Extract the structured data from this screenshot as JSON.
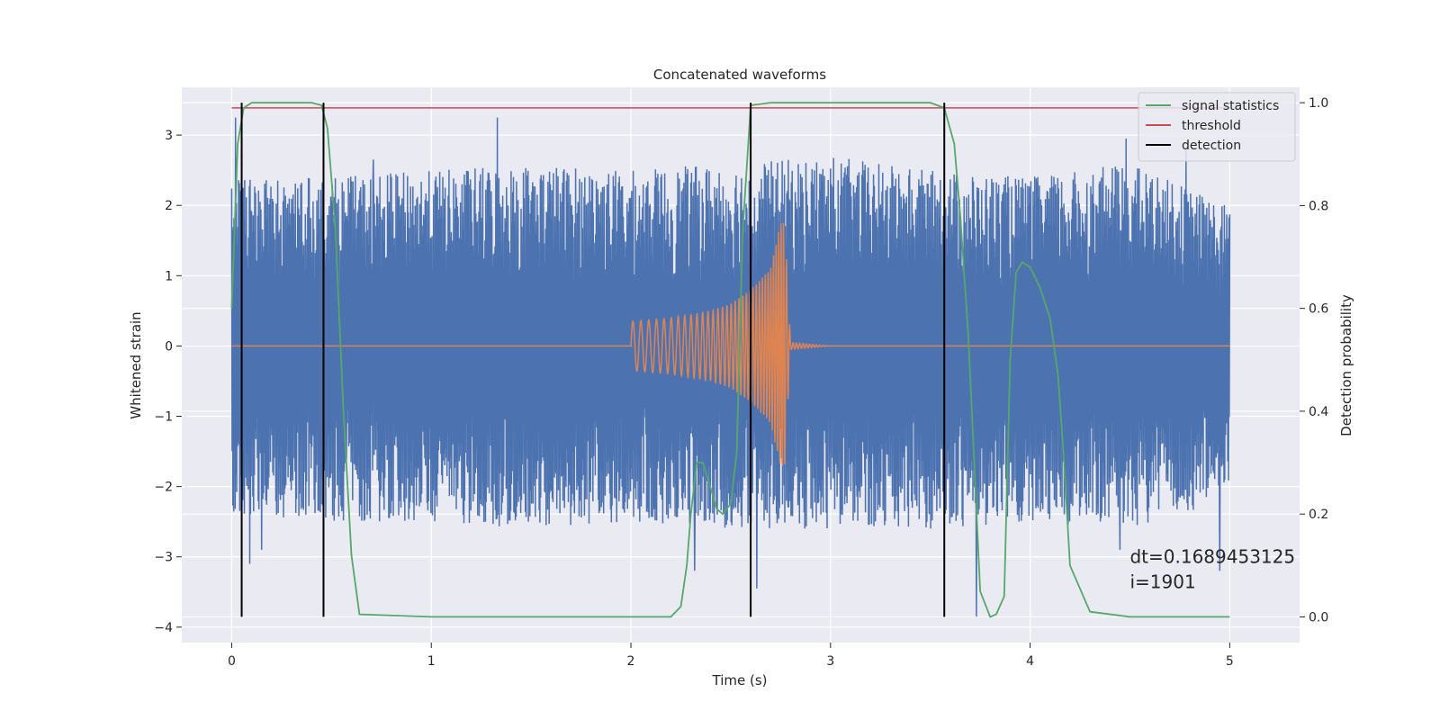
{
  "chart_data": {
    "type": "line",
    "title": "Concatenated waveforms",
    "xlabel": "Time (s)",
    "ylabel": "Whitened strain",
    "y2label": "Detection probability",
    "xlim": [
      -0.25,
      5.35
    ],
    "ylim": [
      -4.22,
      3.68
    ],
    "y2lim": [
      -0.05,
      1.03
    ],
    "xticks": [
      0,
      1,
      2,
      3,
      4,
      5
    ],
    "yticks": [
      -4,
      -3,
      -2,
      -1,
      0,
      1,
      2,
      3
    ],
    "y2ticks": [
      0.0,
      0.2,
      0.4,
      0.6,
      0.8,
      1.0
    ],
    "xticklabels": [
      "0",
      "1",
      "2",
      "3",
      "4",
      "5"
    ],
    "yticklabels": [
      "−4",
      "−3",
      "−2",
      "−1",
      "0",
      "1",
      "2",
      "3"
    ],
    "y2ticklabels": [
      "0.0",
      "0.2",
      "0.4",
      "0.6",
      "0.8",
      "1.0"
    ],
    "grid": true,
    "legend_position": "top-right",
    "colors": {
      "background": "#eaeaf2",
      "grid": "#ffffff",
      "strain": "#4c72b0",
      "injection": "#dd8452",
      "statistic": "#55a868",
      "threshold": "#c44e52",
      "detection": "#000000"
    },
    "series": [
      {
        "name": "",
        "key": "strain",
        "axis": "left",
        "kind": "noise",
        "x_range": [
          0,
          5
        ],
        "envelope": {
          "x": [
            0,
            0.5,
            1,
            1.5,
            2,
            2.5,
            3,
            3.5,
            4,
            4.5,
            5
          ],
          "upper": [
            2.4,
            2.4,
            2.5,
            2.6,
            2.5,
            2.6,
            2.7,
            2.5,
            2.4,
            2.6,
            2.0
          ],
          "lower": [
            -2.4,
            -2.5,
            -2.5,
            -2.6,
            -2.5,
            -2.6,
            -2.6,
            -2.6,
            -2.5,
            -2.6,
            -2.2
          ]
        },
        "peaks": {
          "max": [
            [
              0.02,
              3.25
            ],
            [
              1.33,
              3.25
            ],
            [
              2.6,
              3.1
            ],
            [
              4.78,
              2.8
            ],
            [
              0.71,
              2.65
            ],
            [
              4.48,
              2.95
            ]
          ],
          "min": [
            [
              0.09,
              -3.1
            ],
            [
              2.63,
              -3.45
            ],
            [
              3.73,
              -3.85
            ],
            [
              4.95,
              -3.2
            ],
            [
              0.15,
              -2.9
            ],
            [
              2.32,
              -3.2
            ],
            [
              4.45,
              -2.9
            ]
          ]
        }
      },
      {
        "name": "",
        "key": "injection",
        "axis": "left",
        "kind": "chirp",
        "x": [
          0,
          2.0,
          2.2,
          2.4,
          2.5,
          2.6,
          2.7,
          2.75,
          2.77,
          2.8,
          3.0,
          5.0
        ],
        "amplitude": [
          0,
          0.35,
          0.4,
          0.5,
          0.6,
          0.8,
          1.1,
          1.75,
          1.75,
          0.05,
          0,
          0
        ]
      },
      {
        "name": "signal statistics",
        "key": "statistic",
        "axis": "right",
        "x": [
          0.0,
          0.03,
          0.06,
          0.1,
          0.4,
          0.45,
          0.48,
          0.52,
          0.56,
          0.6,
          0.64,
          1.0,
          2.0,
          2.2,
          2.25,
          2.28,
          2.3,
          2.33,
          2.36,
          2.4,
          2.43,
          2.46,
          2.5,
          2.53,
          2.56,
          2.6,
          2.7,
          3.0,
          3.5,
          3.57,
          3.62,
          3.65,
          3.69,
          3.72,
          3.75,
          3.8,
          3.83,
          3.87,
          3.9,
          3.93,
          3.96,
          4.0,
          4.05,
          4.1,
          4.14,
          4.17,
          4.2,
          4.3,
          4.5,
          5.0
        ],
        "y": [
          0.6,
          0.92,
          0.99,
          1.0,
          1.0,
          0.995,
          0.95,
          0.75,
          0.4,
          0.12,
          0.005,
          0.0,
          0.0,
          0.0,
          0.02,
          0.1,
          0.2,
          0.3,
          0.3,
          0.25,
          0.21,
          0.2,
          0.22,
          0.32,
          0.75,
          0.995,
          1.0,
          1.0,
          1.0,
          0.99,
          0.92,
          0.78,
          0.55,
          0.3,
          0.05,
          0.0,
          0.005,
          0.04,
          0.5,
          0.67,
          0.69,
          0.68,
          0.64,
          0.58,
          0.47,
          0.3,
          0.1,
          0.01,
          0.0,
          0.0
        ]
      },
      {
        "name": "threshold",
        "key": "threshold",
        "axis": "right",
        "x": [
          0,
          5
        ],
        "y": [
          0.99,
          0.99
        ]
      },
      {
        "name": "detection",
        "key": "detection",
        "axis": "right",
        "kind": "vlines",
        "x": [
          0.05,
          0.46,
          2.6,
          3.57
        ],
        "ymin": 0.0,
        "ymax": 1.0
      }
    ],
    "annotation": {
      "lines": [
        "dt=0.1689453125",
        " i=1901"
      ],
      "x": 4.5,
      "y": -3.0
    }
  }
}
